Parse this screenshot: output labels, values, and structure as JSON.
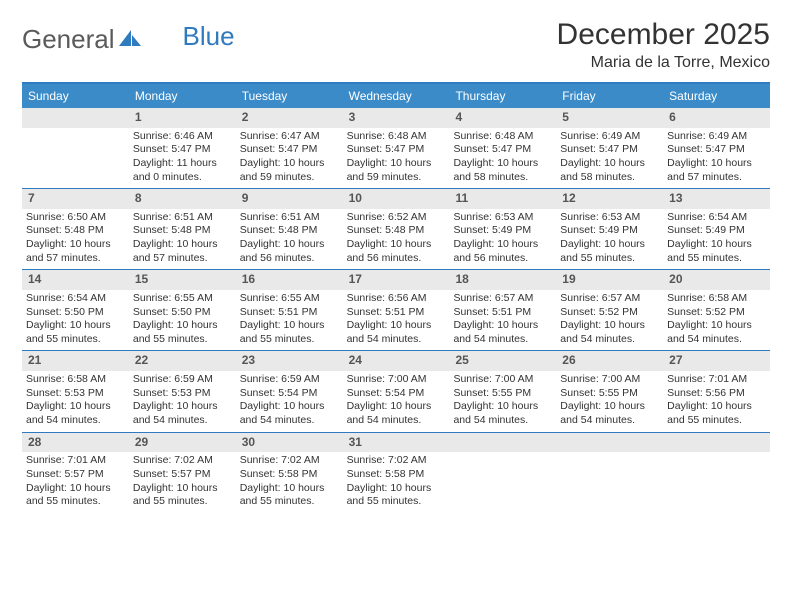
{
  "brand": {
    "part1": "General",
    "part2": "Blue"
  },
  "title": "December 2025",
  "location": "Maria de la Torre, Mexico",
  "colors": {
    "header_bar": "#3b8bc9",
    "border": "#2f7bbf",
    "daynum_bg": "#e9e9e9",
    "text": "#333333",
    "logo_gray": "#5a5a5a",
    "logo_blue": "#2f7bbf"
  },
  "days_of_week": [
    "Sunday",
    "Monday",
    "Tuesday",
    "Wednesday",
    "Thursday",
    "Friday",
    "Saturday"
  ],
  "weeks": [
    [
      {
        "n": "",
        "sr": "",
        "ss": "",
        "dl": ""
      },
      {
        "n": "1",
        "sr": "Sunrise: 6:46 AM",
        "ss": "Sunset: 5:47 PM",
        "dl": "Daylight: 11 hours and 0 minutes."
      },
      {
        "n": "2",
        "sr": "Sunrise: 6:47 AM",
        "ss": "Sunset: 5:47 PM",
        "dl": "Daylight: 10 hours and 59 minutes."
      },
      {
        "n": "3",
        "sr": "Sunrise: 6:48 AM",
        "ss": "Sunset: 5:47 PM",
        "dl": "Daylight: 10 hours and 59 minutes."
      },
      {
        "n": "4",
        "sr": "Sunrise: 6:48 AM",
        "ss": "Sunset: 5:47 PM",
        "dl": "Daylight: 10 hours and 58 minutes."
      },
      {
        "n": "5",
        "sr": "Sunrise: 6:49 AM",
        "ss": "Sunset: 5:47 PM",
        "dl": "Daylight: 10 hours and 58 minutes."
      },
      {
        "n": "6",
        "sr": "Sunrise: 6:49 AM",
        "ss": "Sunset: 5:47 PM",
        "dl": "Daylight: 10 hours and 57 minutes."
      }
    ],
    [
      {
        "n": "7",
        "sr": "Sunrise: 6:50 AM",
        "ss": "Sunset: 5:48 PM",
        "dl": "Daylight: 10 hours and 57 minutes."
      },
      {
        "n": "8",
        "sr": "Sunrise: 6:51 AM",
        "ss": "Sunset: 5:48 PM",
        "dl": "Daylight: 10 hours and 57 minutes."
      },
      {
        "n": "9",
        "sr": "Sunrise: 6:51 AM",
        "ss": "Sunset: 5:48 PM",
        "dl": "Daylight: 10 hours and 56 minutes."
      },
      {
        "n": "10",
        "sr": "Sunrise: 6:52 AM",
        "ss": "Sunset: 5:48 PM",
        "dl": "Daylight: 10 hours and 56 minutes."
      },
      {
        "n": "11",
        "sr": "Sunrise: 6:53 AM",
        "ss": "Sunset: 5:49 PM",
        "dl": "Daylight: 10 hours and 56 minutes."
      },
      {
        "n": "12",
        "sr": "Sunrise: 6:53 AM",
        "ss": "Sunset: 5:49 PM",
        "dl": "Daylight: 10 hours and 55 minutes."
      },
      {
        "n": "13",
        "sr": "Sunrise: 6:54 AM",
        "ss": "Sunset: 5:49 PM",
        "dl": "Daylight: 10 hours and 55 minutes."
      }
    ],
    [
      {
        "n": "14",
        "sr": "Sunrise: 6:54 AM",
        "ss": "Sunset: 5:50 PM",
        "dl": "Daylight: 10 hours and 55 minutes."
      },
      {
        "n": "15",
        "sr": "Sunrise: 6:55 AM",
        "ss": "Sunset: 5:50 PM",
        "dl": "Daylight: 10 hours and 55 minutes."
      },
      {
        "n": "16",
        "sr": "Sunrise: 6:55 AM",
        "ss": "Sunset: 5:51 PM",
        "dl": "Daylight: 10 hours and 55 minutes."
      },
      {
        "n": "17",
        "sr": "Sunrise: 6:56 AM",
        "ss": "Sunset: 5:51 PM",
        "dl": "Daylight: 10 hours and 54 minutes."
      },
      {
        "n": "18",
        "sr": "Sunrise: 6:57 AM",
        "ss": "Sunset: 5:51 PM",
        "dl": "Daylight: 10 hours and 54 minutes."
      },
      {
        "n": "19",
        "sr": "Sunrise: 6:57 AM",
        "ss": "Sunset: 5:52 PM",
        "dl": "Daylight: 10 hours and 54 minutes."
      },
      {
        "n": "20",
        "sr": "Sunrise: 6:58 AM",
        "ss": "Sunset: 5:52 PM",
        "dl": "Daylight: 10 hours and 54 minutes."
      }
    ],
    [
      {
        "n": "21",
        "sr": "Sunrise: 6:58 AM",
        "ss": "Sunset: 5:53 PM",
        "dl": "Daylight: 10 hours and 54 minutes."
      },
      {
        "n": "22",
        "sr": "Sunrise: 6:59 AM",
        "ss": "Sunset: 5:53 PM",
        "dl": "Daylight: 10 hours and 54 minutes."
      },
      {
        "n": "23",
        "sr": "Sunrise: 6:59 AM",
        "ss": "Sunset: 5:54 PM",
        "dl": "Daylight: 10 hours and 54 minutes."
      },
      {
        "n": "24",
        "sr": "Sunrise: 7:00 AM",
        "ss": "Sunset: 5:54 PM",
        "dl": "Daylight: 10 hours and 54 minutes."
      },
      {
        "n": "25",
        "sr": "Sunrise: 7:00 AM",
        "ss": "Sunset: 5:55 PM",
        "dl": "Daylight: 10 hours and 54 minutes."
      },
      {
        "n": "26",
        "sr": "Sunrise: 7:00 AM",
        "ss": "Sunset: 5:55 PM",
        "dl": "Daylight: 10 hours and 54 minutes."
      },
      {
        "n": "27",
        "sr": "Sunrise: 7:01 AM",
        "ss": "Sunset: 5:56 PM",
        "dl": "Daylight: 10 hours and 55 minutes."
      }
    ],
    [
      {
        "n": "28",
        "sr": "Sunrise: 7:01 AM",
        "ss": "Sunset: 5:57 PM",
        "dl": "Daylight: 10 hours and 55 minutes."
      },
      {
        "n": "29",
        "sr": "Sunrise: 7:02 AM",
        "ss": "Sunset: 5:57 PM",
        "dl": "Daylight: 10 hours and 55 minutes."
      },
      {
        "n": "30",
        "sr": "Sunrise: 7:02 AM",
        "ss": "Sunset: 5:58 PM",
        "dl": "Daylight: 10 hours and 55 minutes."
      },
      {
        "n": "31",
        "sr": "Sunrise: 7:02 AM",
        "ss": "Sunset: 5:58 PM",
        "dl": "Daylight: 10 hours and 55 minutes."
      },
      {
        "n": "",
        "sr": "",
        "ss": "",
        "dl": ""
      },
      {
        "n": "",
        "sr": "",
        "ss": "",
        "dl": ""
      },
      {
        "n": "",
        "sr": "",
        "ss": "",
        "dl": ""
      }
    ]
  ]
}
